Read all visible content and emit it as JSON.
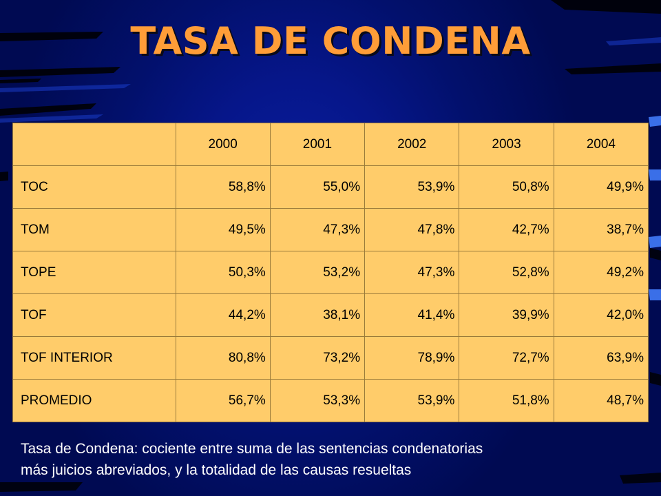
{
  "slide": {
    "title": "TASA DE CONDENA",
    "background_color": "#02106c",
    "title_color": "#ff9d38",
    "table_color": "#ffcc6a"
  },
  "table": {
    "corner_label": "",
    "columns": [
      "2000",
      "2001",
      "2002",
      "2003",
      "2004"
    ],
    "rows": [
      {
        "label": "TOC",
        "values": [
          "58,8%",
          "55,0%",
          "53,9%",
          "50,8%",
          "49,9%"
        ]
      },
      {
        "label": "TOM",
        "values": [
          "49,5%",
          "47,3%",
          "47,8%",
          "42,7%",
          "38,7%"
        ]
      },
      {
        "label": "TOPE",
        "values": [
          "50,3%",
          "53,2%",
          "47,3%",
          "52,8%",
          "49,2%"
        ]
      },
      {
        "label": "TOF",
        "values": [
          "44,2%",
          "38,1%",
          "41,4%",
          "39,9%",
          "42,0%"
        ]
      },
      {
        "label": "TOF INTERIOR",
        "values": [
          "80,8%",
          "73,2%",
          "78,9%",
          "72,7%",
          "63,9%"
        ]
      },
      {
        "label": "PROMEDIO",
        "values": [
          "56,7%",
          "53,3%",
          "53,9%",
          "51,8%",
          "48,7%"
        ]
      }
    ]
  },
  "footnote": {
    "line1": "Tasa de Condena: cociente entre suma de las sentencias condenatorias",
    "line2": "más juicios abreviados, y la totalidad de las causas resueltas"
  }
}
